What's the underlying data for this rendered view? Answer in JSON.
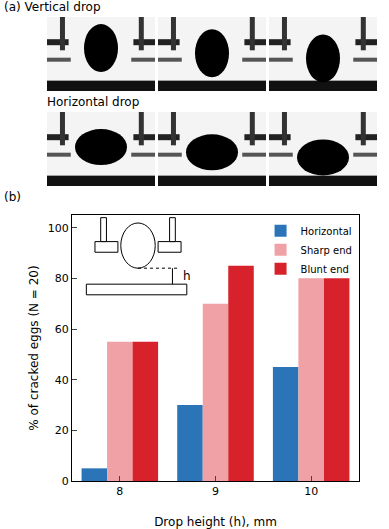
{
  "panel_a": {
    "label": "(a) Vertical drop",
    "row2_label": "Horizontal drop"
  },
  "panel_b": {
    "label": "(b)"
  },
  "chart_data": {
    "type": "bar",
    "x_label": "Drop height (h), mm",
    "y_label": "% of cracked eggs (N = 20)",
    "categories": [
      "8",
      "9",
      "10"
    ],
    "series": [
      {
        "name": "Horizontal",
        "color": "#2b74b8",
        "values": [
          5,
          30,
          45
        ]
      },
      {
        "name": "Sharp end",
        "color": "#efa1a6",
        "values": [
          55,
          70,
          80
        ]
      },
      {
        "name": "Blunt end",
        "color": "#d7222c",
        "values": [
          55,
          85,
          80
        ]
      }
    ],
    "ylim": [
      0,
      105
    ],
    "yticks": [
      0,
      20,
      40,
      60,
      80,
      100
    ],
    "grid": false,
    "legend": "top-right",
    "annotations": [
      "h"
    ]
  }
}
